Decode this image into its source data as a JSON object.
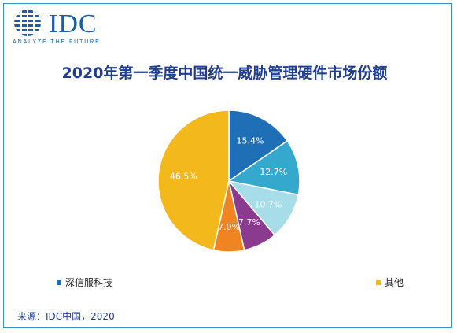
{
  "logo": {
    "name": "IDC",
    "tagline": "ANALYZE THE FUTURE",
    "color": "#1a5ea8"
  },
  "title": "2020年第一季度中国统一威胁管理硬件市场份额",
  "source": "来源：IDC中国，2020",
  "legend_visible": [
    {
      "label": "深信服科技",
      "color": "#1f6fb7"
    },
    {
      "label": "其他",
      "color": "#f2b81c"
    }
  ],
  "chart_data": {
    "type": "pie",
    "title": "2020年第一季度中国统一威胁管理硬件市场份额",
    "start_angle_deg": 0,
    "direction": "clockwise",
    "slices": [
      {
        "label": "深信服科技",
        "value": 15.4,
        "display": "15.4%",
        "color": "#1f6fb7"
      },
      {
        "value": 12.7,
        "display": "12.7%",
        "color": "#35a9cd"
      },
      {
        "value": 10.7,
        "display": "10.7%",
        "color": "#a6dde9"
      },
      {
        "value": 7.7,
        "display": "7.7%",
        "color": "#8a3a8f"
      },
      {
        "value": 7.0,
        "display": "7.0%",
        "color": "#f08421"
      },
      {
        "label": "其他",
        "value": 46.5,
        "display": "46.5%",
        "color": "#f2b81c"
      }
    ],
    "label_color": "#ffffff",
    "legend_placement": "bottom"
  }
}
